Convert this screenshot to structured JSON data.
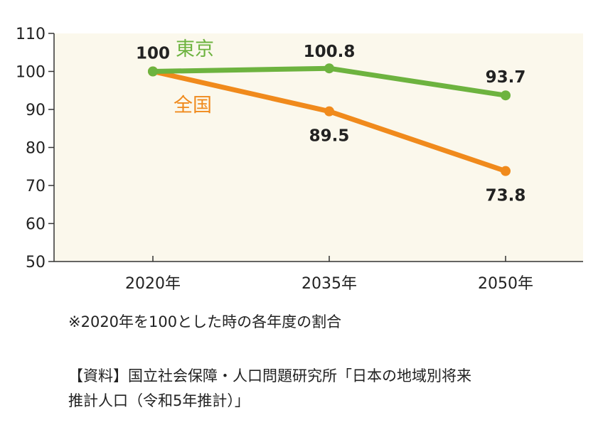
{
  "chart_data": {
    "type": "line",
    "categories": [
      "2020年",
      "2035年",
      "2050年"
    ],
    "series": [
      {
        "name": "東京",
        "values": [
          100,
          100.8,
          93.7
        ],
        "labels": [
          "100",
          "100.8",
          "93.7"
        ],
        "color": "#6db33f"
      },
      {
        "name": "全国",
        "values": [
          100,
          89.5,
          73.8
        ],
        "labels": [
          "",
          "89.5",
          "73.8"
        ],
        "color": "#f08a1c"
      }
    ],
    "yticks": [
      "50",
      "60",
      "70",
      "80",
      "90",
      "100",
      "110"
    ],
    "ylim": [
      50,
      110
    ],
    "grid": false,
    "plot_background": "#fbf8ec"
  },
  "notes": {
    "footnote": "※2020年を100とした時の各年度の割合",
    "source_line1": "【資料】国立社会保障・人口問題研究所「日本の地域別将来",
    "source_line2": "推計人口（令和5年推計）」"
  }
}
